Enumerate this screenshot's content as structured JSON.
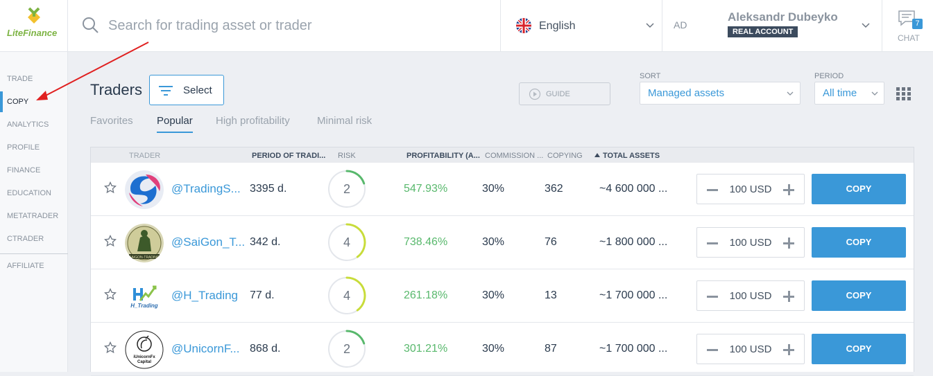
{
  "brand": {
    "name": "LiteFinance"
  },
  "search": {
    "placeholder": "Search for trading asset or trader"
  },
  "language": {
    "label": "English"
  },
  "user": {
    "initials": "AD",
    "name": "Aleksandr Dubeyko",
    "account": "REAL ACCOUNT"
  },
  "chat": {
    "label": "CHAT",
    "count": "7"
  },
  "sidebar": {
    "items": [
      {
        "label": "TRADE"
      },
      {
        "label": "COPY"
      },
      {
        "label": "ANALYTICS"
      },
      {
        "label": "PROFILE"
      },
      {
        "label": "FINANCE"
      },
      {
        "label": "EDUCATION"
      },
      {
        "label": "METATRADER"
      },
      {
        "label": "CTRADER"
      },
      {
        "label": "AFFILIATE"
      }
    ]
  },
  "page": {
    "title": "Traders",
    "select_label": "Select",
    "guide_label": "GUIDE",
    "sort_label": "SORT",
    "sort_value": "Managed assets",
    "period_label": "PERIOD",
    "period_value": "All time"
  },
  "tabs": [
    {
      "label": "Favorites"
    },
    {
      "label": "Popular"
    },
    {
      "label": "High profitability"
    },
    {
      "label": "Minimal risk"
    }
  ],
  "table": {
    "columns": {
      "trader": "TRADER",
      "period": "PERIOD OF TRADI...",
      "risk": "RISK",
      "profitability": "PROFITABILITY (A...",
      "commission": "COMMISSION ...",
      "copying": "COPYING",
      "total_assets": "TOTAL ASSETS"
    },
    "rows": [
      {
        "nick": "@TradingS...",
        "period": "3395 d.",
        "risk": "2",
        "risk_level": 0.2,
        "profitability": "547.93%",
        "commission": "30%",
        "copying": "362",
        "assets": "~4 600 000 ...",
        "amount": "100 USD",
        "copy": "COPY"
      },
      {
        "nick": "@SaiGon_T...",
        "period": "342 d.",
        "risk": "4",
        "risk_level": 0.4,
        "profitability": "738.46%",
        "commission": "30%",
        "copying": "76",
        "assets": "~1 800 000 ...",
        "amount": "100 USD",
        "copy": "COPY"
      },
      {
        "nick": "@H_Trading",
        "period": "77 d.",
        "risk": "4",
        "risk_level": 0.4,
        "profitability": "261.18%",
        "commission": "30%",
        "copying": "13",
        "assets": "~1 700 000 ...",
        "amount": "100 USD",
        "copy": "COPY"
      },
      {
        "nick": "@UnicornF...",
        "period": "868 d.",
        "risk": "2",
        "risk_level": 0.2,
        "profitability": "301.21%",
        "commission": "30%",
        "copying": "87",
        "assets": "~1 700 000 ...",
        "amount": "100 USD",
        "copy": "COPY"
      }
    ],
    "avatar_text": {
      "row2": "SAIGON-TRADING",
      "row3": "H_Trading",
      "row4_line1": "iUnicornFx",
      "row4_line2": "Capital"
    }
  },
  "colors": {
    "accent": "#3a98d8",
    "profit": "#58b86c",
    "risk_low": "#58b86c",
    "risk_mid": "#c8dc3a",
    "arrow": "#e02020"
  }
}
